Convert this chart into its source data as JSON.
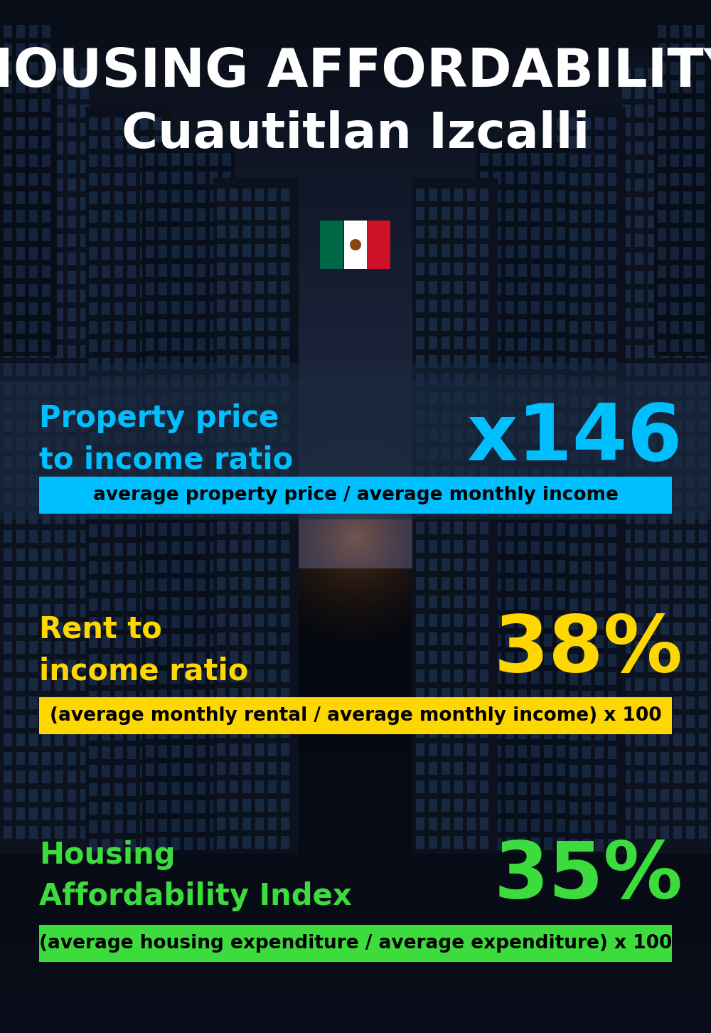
{
  "title_line1": "HOUSING AFFORDABILITY",
  "title_line2": "Cuautitlan Izcalli",
  "bg_color": "#050d18",
  "section1_label": "Property price\nto income ratio",
  "section1_value": "x146",
  "section1_label_color": "#00bfff",
  "section1_value_color": "#00bfff",
  "section1_formula": "average property price / average monthly income",
  "section1_formula_bg": "#00bfff",
  "section2_label": "Rent to\nincome ratio",
  "section2_value": "38%",
  "section2_label_color": "#ffd700",
  "section2_value_color": "#ffd700",
  "section2_formula": "(average monthly rental / average monthly income) x 100",
  "section2_formula_bg": "#ffd700",
  "section3_label": "Housing\nAffordability Index",
  "section3_value": "35%",
  "section3_label_color": "#3ddc3d",
  "section3_value_color": "#3ddc3d",
  "section3_formula": "(average housing expenditure / average expenditure) x 100",
  "section3_formula_bg": "#3ddc3d",
  "title_color": "#ffffff",
  "title_fontsize": 54,
  "subtitle_fontsize": 50,
  "label_fontsize": 30,
  "value_fontsize": 80,
  "formula_fontsize": 19
}
